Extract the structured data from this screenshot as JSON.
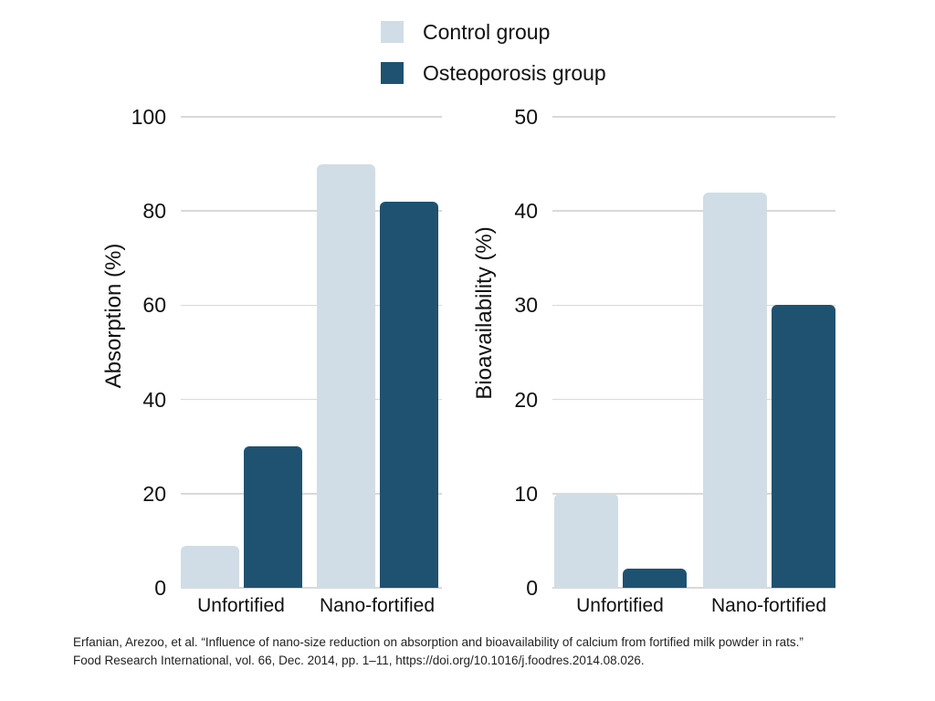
{
  "legend": {
    "items": [
      {
        "label": "Control group",
        "color": "#d0dde6"
      },
      {
        "label": "Osteoporosis group",
        "color": "#1f5270"
      }
    ]
  },
  "chart_data": [
    {
      "type": "bar",
      "title": "",
      "categories": [
        "Unfortified",
        "Nano-fortified"
      ],
      "series": [
        {
          "name": "Control group",
          "color": "#d0dde6",
          "values": [
            9,
            90
          ]
        },
        {
          "name": "Osteoporosis group",
          "color": "#1f5270",
          "values": [
            30,
            82
          ]
        }
      ],
      "xlabel": "",
      "ylabel": "Absorption (%)",
      "ylim": [
        0,
        100
      ],
      "yticks": [
        0,
        20,
        40,
        60,
        80,
        100
      ],
      "grid": true,
      "legend_position": "top-center-shared"
    },
    {
      "type": "bar",
      "title": "",
      "categories": [
        "Unfortified",
        "Nano-fortified"
      ],
      "series": [
        {
          "name": "Control group",
          "color": "#d0dde6",
          "values": [
            10,
            42
          ]
        },
        {
          "name": "Osteoporosis group",
          "color": "#1f5270",
          "values": [
            2,
            30
          ]
        }
      ],
      "xlabel": "",
      "ylabel": "Bioavailability (%)",
      "ylim": [
        0,
        50
      ],
      "yticks": [
        0,
        10,
        20,
        30,
        40,
        50
      ],
      "grid": true,
      "legend_position": "top-center-shared"
    }
  ],
  "citation": {
    "line1": "Erfanian, Arezoo, et al. “Influence of nano-size reduction on absorption and bioavailability of calcium from fortified milk powder in rats.”",
    "line2": "Food Research International, vol. 66, Dec. 2014, pp. 1–11, https://doi.org/10.1016/j.foodres.2014.08.026."
  }
}
